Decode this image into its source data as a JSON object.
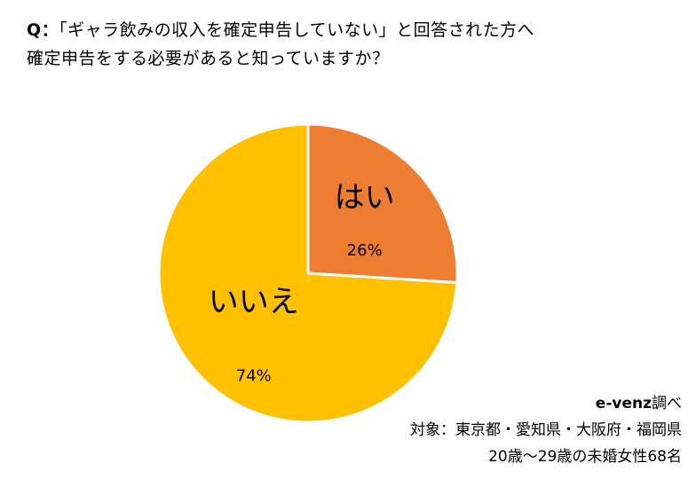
{
  "question": {
    "prefix": "Q：",
    "line1": "「ギャラ飲みの収入を確定申告していない」と回答された方へ",
    "line2": "確定申告をする必要があると知っていますか？"
  },
  "chart_data": {
    "type": "pie",
    "title": "",
    "slices": [
      {
        "label": "はい",
        "value": 26,
        "value_label": "26%",
        "color": "#ED7D31"
      },
      {
        "label": "いいえ",
        "value": 74,
        "value_label": "74%",
        "color": "#FFC000"
      }
    ],
    "start_angle": "12 o'clock",
    "direction": "clockwise",
    "slice_border_color": "#ffffff"
  },
  "footer": {
    "source": "e-venz",
    "source_suffix": "調べ",
    "target": "対象：東京都・愛知県・大阪府・福岡県",
    "sample": "20歳〜29歳の未婚女性68名"
  }
}
